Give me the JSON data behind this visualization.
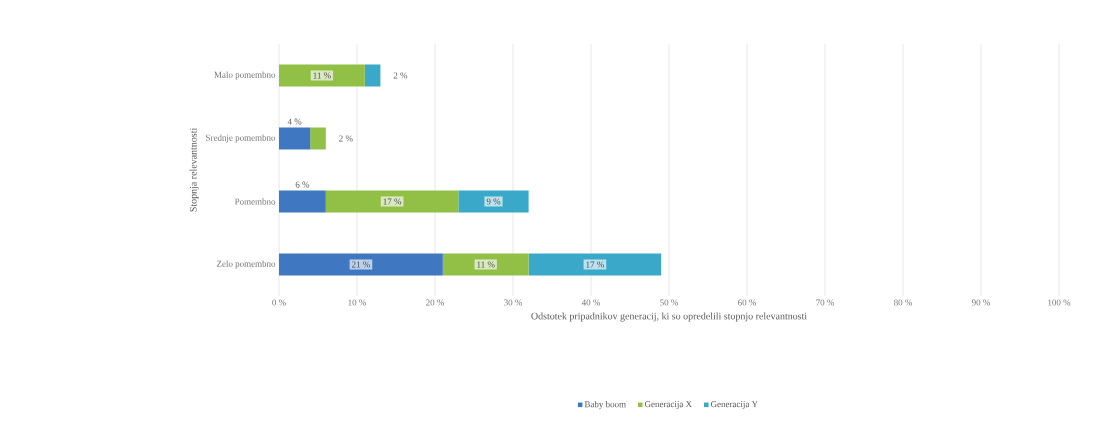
{
  "chart_data": {
    "type": "bar",
    "orientation": "horizontal",
    "stacked": true,
    "xlabel": "Odstotek pripadnikov generacij, ki so opredelili stopnjo relevantnosti",
    "ylabel": "Stopnja relevantnosti",
    "categories": [
      "Malo pomembno",
      "Srednje pomembno",
      "Pomembno",
      "Zelo pomembno"
    ],
    "series": [
      {
        "name": "Baby boom",
        "color": "#3f78c0",
        "values": [
          0,
          4,
          6,
          21
        ],
        "value_labels": [
          null,
          "4 %",
          "6 %",
          "21 %"
        ]
      },
      {
        "name": "Generacija X",
        "color": "#92c047",
        "values": [
          11,
          2,
          17,
          11
        ],
        "value_labels": [
          "11 %",
          "2 %",
          "17 %",
          "11 %"
        ]
      },
      {
        "name": "Generacija Y",
        "color": "#3aa8c8",
        "values": [
          2,
          0,
          9,
          17
        ],
        "value_labels": [
          "2 %",
          null,
          "9 %",
          "17 %"
        ]
      }
    ],
    "xlim": [
      0,
      100
    ],
    "xticks": [
      {
        "value": 0,
        "label": "0 %"
      },
      {
        "value": 10,
        "label": "10 %"
      },
      {
        "value": 20,
        "label": "20 %"
      },
      {
        "value": 30,
        "label": "30 %"
      },
      {
        "value": 40,
        "label": "40 %"
      },
      {
        "value": 50,
        "label": "50 %"
      },
      {
        "value": 60,
        "label": "60 %"
      },
      {
        "value": 70,
        "label": "70 %"
      },
      {
        "value": 80,
        "label": "80 %"
      },
      {
        "value": 90,
        "label": "90 %"
      },
      {
        "value": 100,
        "label": "100 %"
      }
    ],
    "grid": "x",
    "legend": "bottom"
  }
}
